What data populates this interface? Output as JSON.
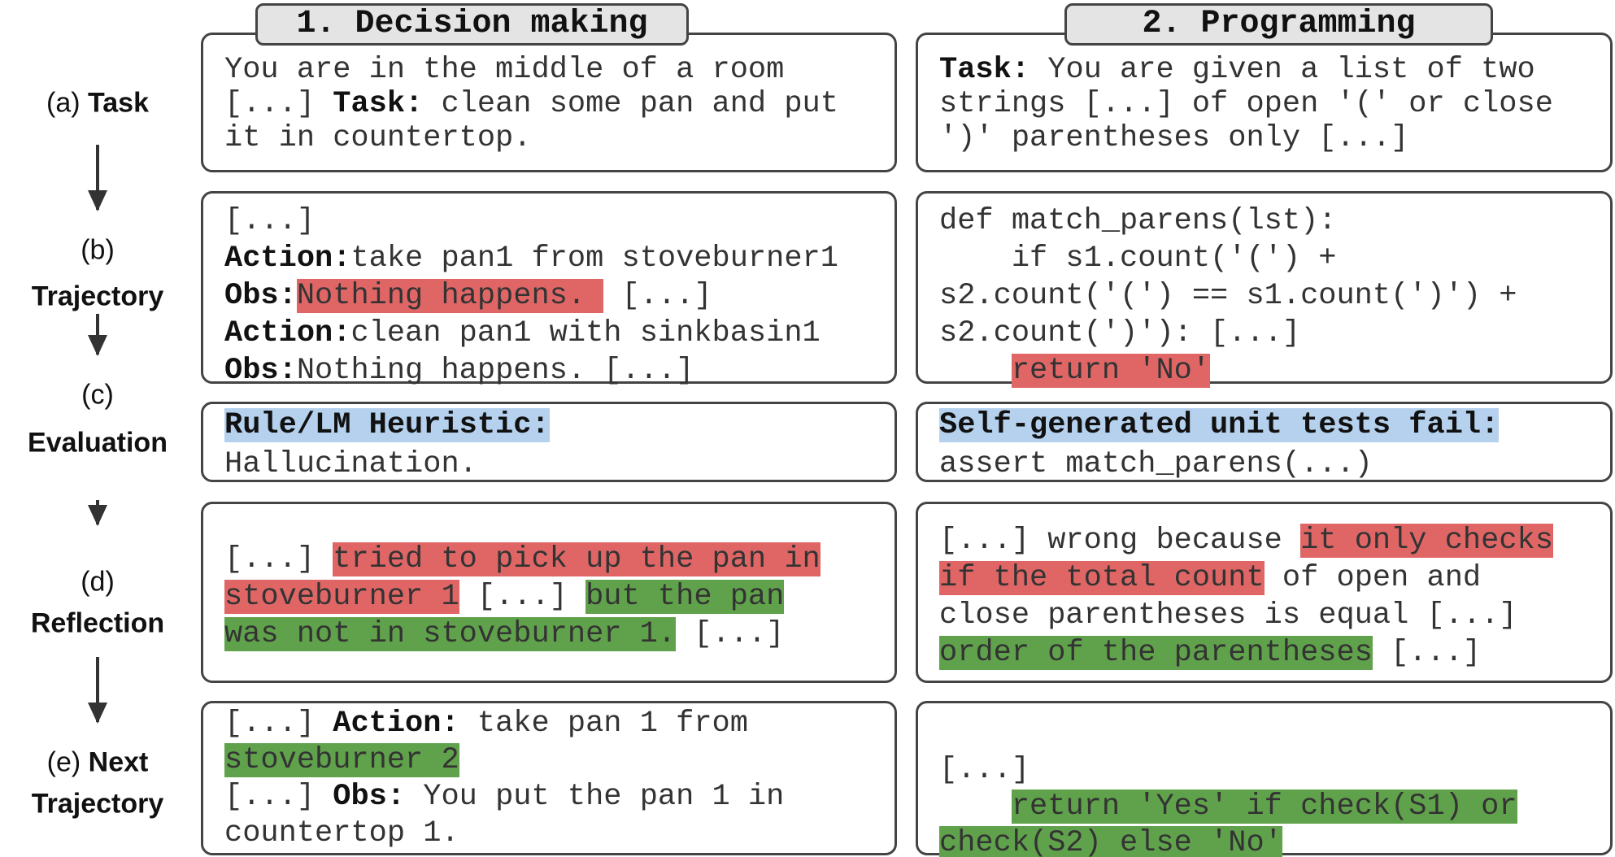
{
  "headers": [
    "1. Decision making",
    "2. Programming"
  ],
  "stages": [
    {
      "prefix": "(a)",
      "name": "Task"
    },
    {
      "prefix": "(b)",
      "name": "Trajectory"
    },
    {
      "prefix": "(c)",
      "name": "Evaluation"
    },
    {
      "prefix": "(d)",
      "name": "Reflection"
    },
    {
      "prefix": "(e)",
      "name": "Next",
      "name2": "Trajectory"
    }
  ],
  "highlight_colors": {
    "red": "#e06666",
    "green": "#60a24b",
    "blue": "#b5d1ee"
  },
  "boxes": {
    "decision": [
      [
        [
          [
            "You are in the middle of a room",
            ""
          ]
        ],
        [
          [
            "[...] ",
            ""
          ],
          [
            "Task:",
            "b"
          ],
          [
            " clean some pan and put",
            ""
          ]
        ],
        [
          [
            "it in countertop.",
            ""
          ]
        ]
      ],
      [
        [
          [
            "[...]",
            ""
          ]
        ],
        [
          [
            "Action:",
            "b"
          ],
          [
            "take pan1 from stoveburner1",
            ""
          ]
        ],
        [
          [
            "Obs:",
            "b"
          ],
          [
            "Nothing happens. ",
            "red"
          ],
          [
            " [...]",
            ""
          ]
        ],
        [
          [
            "Action:",
            "b"
          ],
          [
            "clean pan1 with sinkbasin1",
            ""
          ]
        ],
        [
          [
            "Obs:",
            "b"
          ],
          [
            "Nothing happens. [...]",
            ""
          ]
        ]
      ],
      [
        [
          [
            "Rule/LM Heuristic:",
            "b blue"
          ]
        ],
        [
          [
            "Hallucination.",
            ""
          ]
        ]
      ],
      [
        [
          [
            "[...] ",
            ""
          ],
          [
            "tried to pick up the pan in",
            "red"
          ]
        ],
        [
          [
            "stoveburner 1",
            "red"
          ],
          [
            " [...] ",
            ""
          ],
          [
            "but the pan",
            "green"
          ]
        ],
        [
          [
            "was not in stoveburner 1.",
            "green"
          ],
          [
            " [...]",
            ""
          ]
        ]
      ],
      [
        [
          [
            "[...] ",
            ""
          ],
          [
            "Action:",
            "b"
          ],
          [
            " take pan 1 from",
            ""
          ]
        ],
        [
          [
            "stoveburner 2",
            "green"
          ]
        ],
        [
          [
            "[...] ",
            ""
          ],
          [
            "Obs:",
            "b"
          ],
          [
            " You put the pan 1 in",
            ""
          ]
        ],
        [
          [
            "countertop 1.",
            ""
          ]
        ]
      ]
    ],
    "programming": [
      [
        [
          [
            "Task:",
            "b"
          ],
          [
            " You are given a list of two",
            ""
          ]
        ],
        [
          [
            "strings [...] of open '(' or close",
            ""
          ]
        ],
        [
          [
            "')' parentheses only [...]",
            ""
          ]
        ]
      ],
      [
        [
          [
            "def match_parens(lst):",
            ""
          ]
        ],
        [
          [
            "    if s1.count('(') +",
            ""
          ]
        ],
        [
          [
            "s2.count('(') == s1.count(')') +",
            ""
          ]
        ],
        [
          [
            "s2.count(')'): [...]",
            ""
          ]
        ],
        [
          [
            "    ",
            ""
          ],
          [
            "return 'No'",
            "red"
          ]
        ]
      ],
      [
        [
          [
            "Self-generated unit tests fail:",
            "b blue"
          ]
        ],
        [
          [
            "assert match_parens(...)",
            ""
          ]
        ]
      ],
      [
        [
          [
            "[...] wrong because ",
            ""
          ],
          [
            "it only checks",
            "red"
          ]
        ],
        [
          [
            "if the total count",
            "red"
          ],
          [
            " of open and",
            ""
          ]
        ],
        [
          [
            "close parentheses is equal [...]",
            ""
          ]
        ],
        [
          [
            "order of the parentheses",
            "green"
          ],
          [
            " [...]",
            ""
          ]
        ]
      ],
      [
        [
          [
            "[...]",
            ""
          ]
        ],
        [
          [
            "    ",
            ""
          ],
          [
            "return 'Yes' if check(S1) or",
            "green"
          ]
        ],
        [
          [
            "check(S2) else 'No'",
            "green"
          ]
        ]
      ]
    ]
  }
}
